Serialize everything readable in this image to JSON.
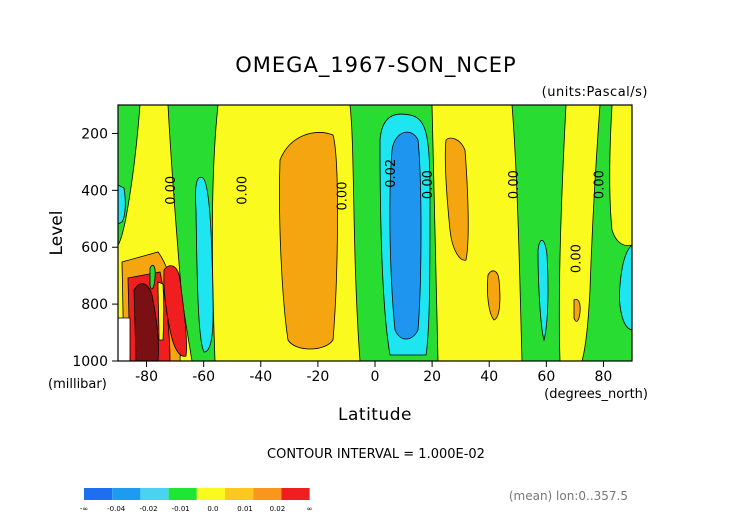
{
  "chart_data": {
    "type": "heatmap",
    "title": "OMEGA_1967-SON_NCEP",
    "units": "(units:Pascal/s)",
    "xlabel": "Latitude",
    "xunits": "(degrees_north)",
    "ylabel": "Level",
    "yunits": "(millibar)",
    "x_ticks": [
      "-80",
      "-60",
      "-40",
      "-20",
      "0",
      "20",
      "40",
      "60",
      "80"
    ],
    "x_tick_values": [
      -80,
      -60,
      -40,
      -20,
      0,
      20,
      40,
      60,
      80
    ],
    "y_ticks": [
      "200",
      "400",
      "600",
      "800",
      "1000"
    ],
    "y_tick_values": [
      200,
      400,
      600,
      800,
      1000
    ],
    "xlim": [
      -90,
      90
    ],
    "ylim": [
      1000,
      100
    ],
    "contour_interval_text": "CONTOUR INTERVAL = 1.000E-02",
    "footer_text": "(mean) lon:0..357.5",
    "contour_labels": [
      {
        "text": "0.00",
        "x": -70,
        "y": 400
      },
      {
        "text": "0.00",
        "x": -45,
        "y": 400
      },
      {
        "text": "0.00",
        "x": -10,
        "y": 420
      },
      {
        "text": "0.02",
        "x": 7,
        "y": 340
      },
      {
        "text": "0.00",
        "x": 20,
        "y": 380
      },
      {
        "text": "0.00",
        "x": 50,
        "y": 380
      },
      {
        "text": "0.00",
        "x": 72,
        "y": 640
      },
      {
        "text": "0.00",
        "x": 80,
        "y": 380
      }
    ],
    "colorbar": {
      "labels": [
        "-∞",
        "-0.04",
        "-0.02",
        "-0.01",
        "0.0",
        "0.01",
        "0.02",
        "∞"
      ],
      "colors": [
        "#1e6ef0",
        "#1e9bf0",
        "#4bd2f0",
        "#1ee632",
        "#fafa1e",
        "#fac81e",
        "#fa961e",
        "#f01e1e"
      ]
    },
    "fill_colors": {
      "yellow": "#fafa1e",
      "green": "#28dc32",
      "orange": "#f5a50f",
      "cyan": "#1ee6f0",
      "blue": "#1e96f0",
      "red": "#f01e1e",
      "darkred": "#7a0f14"
    }
  }
}
